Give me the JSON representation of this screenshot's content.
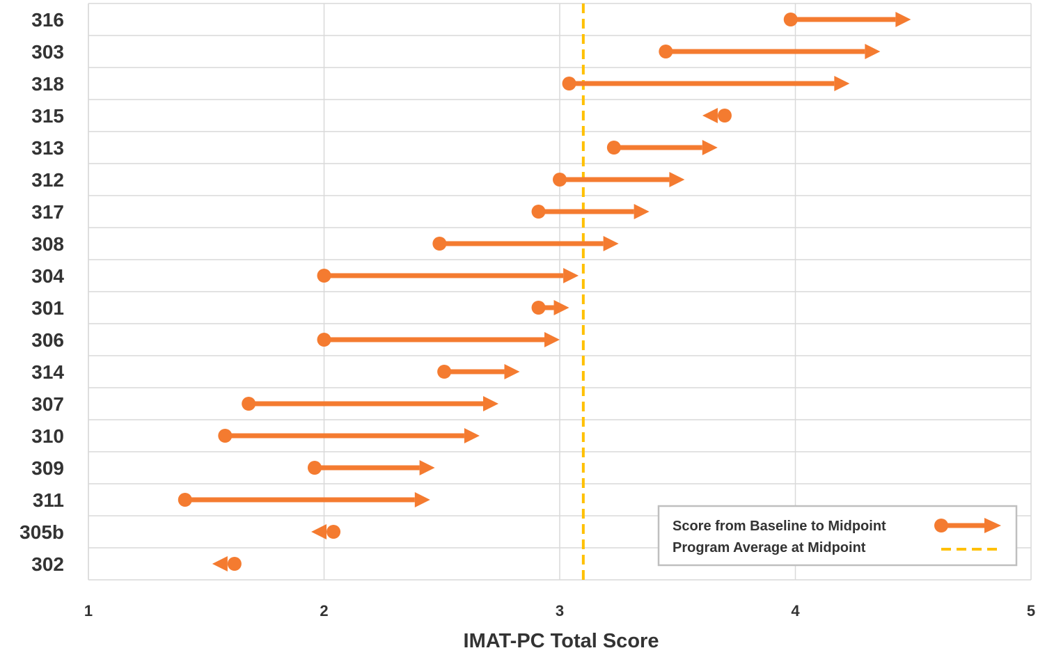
{
  "chart_data": {
    "type": "dumbbell",
    "xlabel": "IMAT-PC Total Score",
    "xlim": [
      1,
      5
    ],
    "xticks": [
      1,
      2,
      3,
      4,
      5
    ],
    "grid": true,
    "legend_position": "bottom-right",
    "colors": {
      "series": "#F47B30",
      "average": "#FFC000",
      "grid": "#D9D9D9"
    },
    "legend": {
      "change": "Score from Baseline to Midpoint",
      "average": "Program Average at Midpoint"
    },
    "program_average_midpoint": 3.1,
    "participants": [
      {
        "id": "316",
        "baseline": 3.98,
        "midpoint": 4.49
      },
      {
        "id": "303",
        "baseline": 3.45,
        "midpoint": 4.36
      },
      {
        "id": "318",
        "baseline": 3.04,
        "midpoint": 4.23
      },
      {
        "id": "315",
        "baseline": 3.7,
        "midpoint": 3.67
      },
      {
        "id": "313",
        "baseline": 3.23,
        "midpoint": 3.67
      },
      {
        "id": "312",
        "baseline": 3.0,
        "midpoint": 3.53
      },
      {
        "id": "317",
        "baseline": 2.91,
        "midpoint": 3.38
      },
      {
        "id": "308",
        "baseline": 2.49,
        "midpoint": 3.25
      },
      {
        "id": "304",
        "baseline": 2.0,
        "midpoint": 3.08
      },
      {
        "id": "301",
        "baseline": 2.91,
        "midpoint": 3.04
      },
      {
        "id": "306",
        "baseline": 2.0,
        "midpoint": 3.0
      },
      {
        "id": "314",
        "baseline": 2.51,
        "midpoint": 2.83
      },
      {
        "id": "307",
        "baseline": 1.68,
        "midpoint": 2.74
      },
      {
        "id": "310",
        "baseline": 1.58,
        "midpoint": 2.66
      },
      {
        "id": "309",
        "baseline": 1.96,
        "midpoint": 2.47
      },
      {
        "id": "311",
        "baseline": 1.41,
        "midpoint": 2.45
      },
      {
        "id": "305b",
        "baseline": 2.04,
        "midpoint": 2.02
      },
      {
        "id": "302",
        "baseline": 1.62,
        "midpoint": 1.6
      }
    ]
  }
}
